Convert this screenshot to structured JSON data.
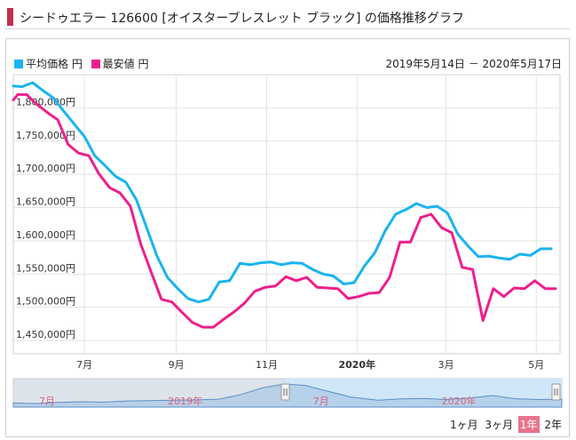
{
  "header": {
    "title": "シードゥエラー 126600 [オイスターブレスレット ブラック] の価格推移グラフ"
  },
  "legend": {
    "items": [
      {
        "label": "平均価格 円",
        "color": "#1ab3f0"
      },
      {
        "label": "最安値 円",
        "color": "#ee1f8c"
      }
    ]
  },
  "date_range": "2019年5月14日 － 2020年5月17日",
  "colors": {
    "average": "#1ab3f0",
    "lowest": "#ee1f8c",
    "grid": "#e3e3e3",
    "navigator_bg": "#dde3ea",
    "navigator_selected": "#cfe7f8",
    "navigator_line": "#5b8fc7",
    "navigator_label": "#e0607a"
  },
  "chart_data": {
    "type": "line",
    "ylim": [
      1430000,
      1850000
    ],
    "y_ticks": [
      {
        "value": 1450000,
        "label": "1,450,000円"
      },
      {
        "value": 1500000,
        "label": "1,500,000円"
      },
      {
        "value": 1550000,
        "label": "1,550,000円"
      },
      {
        "value": 1600000,
        "label": "1,600,000円"
      },
      {
        "value": 1650000,
        "label": "1,650,000円"
      },
      {
        "value": 1700000,
        "label": "1,700,000円"
      },
      {
        "value": 1750000,
        "label": "1,750,000円"
      },
      {
        "value": 1800000,
        "label": "1,800,000円"
      }
    ],
    "x_range": [
      "2019-05-14",
      "2020-05-17"
    ],
    "x_ticks": [
      {
        "date": "2019-07-01",
        "label": "7月",
        "bold": false
      },
      {
        "date": "2019-09-01",
        "label": "9月",
        "bold": false
      },
      {
        "date": "2019-11-01",
        "label": "11月",
        "bold": false
      },
      {
        "date": "2020-01-01",
        "label": "2020年",
        "bold": true
      },
      {
        "date": "2020-03-01",
        "label": "3月",
        "bold": false
      },
      {
        "date": "2020-05-01",
        "label": "5月",
        "bold": false
      }
    ],
    "series": [
      {
        "name": "平均価格 円",
        "color": "#1ab3f0",
        "points": [
          [
            "2019-05-14",
            1833000
          ],
          [
            "2019-05-20",
            1832000
          ],
          [
            "2019-05-27",
            1838000
          ],
          [
            "2019-06-03",
            1826000
          ],
          [
            "2019-06-10",
            1815000
          ],
          [
            "2019-06-17",
            1795000
          ],
          [
            "2019-06-24",
            1776000
          ],
          [
            "2019-07-01",
            1757000
          ],
          [
            "2019-07-08",
            1728000
          ],
          [
            "2019-07-15",
            1713000
          ],
          [
            "2019-07-22",
            1697000
          ],
          [
            "2019-07-29",
            1688000
          ],
          [
            "2019-08-05",
            1662000
          ],
          [
            "2019-08-12",
            1620000
          ],
          [
            "2019-08-19",
            1577000
          ],
          [
            "2019-08-26",
            1545000
          ],
          [
            "2019-09-02",
            1528000
          ],
          [
            "2019-09-09",
            1513000
          ],
          [
            "2019-09-16",
            1508000
          ],
          [
            "2019-09-23",
            1512000
          ],
          [
            "2019-09-30",
            1538000
          ],
          [
            "2019-10-07",
            1540000
          ],
          [
            "2019-10-14",
            1566000
          ],
          [
            "2019-10-21",
            1564000
          ],
          [
            "2019-10-28",
            1567000
          ],
          [
            "2019-11-04",
            1568000
          ],
          [
            "2019-11-11",
            1564000
          ],
          [
            "2019-11-18",
            1567000
          ],
          [
            "2019-11-25",
            1566000
          ],
          [
            "2019-12-02",
            1557000
          ],
          [
            "2019-12-09",
            1550000
          ],
          [
            "2019-12-16",
            1547000
          ],
          [
            "2019-12-23",
            1535000
          ],
          [
            "2019-12-30",
            1537000
          ],
          [
            "2020-01-06",
            1562000
          ],
          [
            "2020-01-13",
            1582000
          ],
          [
            "2020-01-20",
            1615000
          ],
          [
            "2020-01-27",
            1640000
          ],
          [
            "2020-02-03",
            1647000
          ],
          [
            "2020-02-10",
            1656000
          ],
          [
            "2020-02-17",
            1650000
          ],
          [
            "2020-02-24",
            1652000
          ],
          [
            "2020-03-02",
            1642000
          ],
          [
            "2020-03-09",
            1610000
          ],
          [
            "2020-03-16",
            1592000
          ],
          [
            "2020-03-23",
            1576000
          ],
          [
            "2020-03-30",
            1577000
          ],
          [
            "2020-04-06",
            1574000
          ],
          [
            "2020-04-13",
            1572000
          ],
          [
            "2020-04-20",
            1580000
          ],
          [
            "2020-04-27",
            1578000
          ],
          [
            "2020-05-04",
            1588000
          ],
          [
            "2020-05-11",
            1588000
          ]
        ]
      },
      {
        "name": "最安値 円",
        "color": "#ee1f8c",
        "points": [
          [
            "2019-05-14",
            1812000
          ],
          [
            "2019-05-17",
            1820000
          ],
          [
            "2019-05-23",
            1820000
          ],
          [
            "2019-05-30",
            1805000
          ],
          [
            "2019-06-06",
            1793000
          ],
          [
            "2019-06-13",
            1782000
          ],
          [
            "2019-06-20",
            1745000
          ],
          [
            "2019-06-27",
            1732000
          ],
          [
            "2019-07-04",
            1728000
          ],
          [
            "2019-07-11",
            1700000
          ],
          [
            "2019-07-18",
            1680000
          ],
          [
            "2019-07-25",
            1672000
          ],
          [
            "2019-08-01",
            1652000
          ],
          [
            "2019-08-08",
            1595000
          ],
          [
            "2019-08-15",
            1553000
          ],
          [
            "2019-08-22",
            1512000
          ],
          [
            "2019-08-29",
            1508000
          ],
          [
            "2019-09-05",
            1492000
          ],
          [
            "2019-09-12",
            1477000
          ],
          [
            "2019-09-19",
            1470000
          ],
          [
            "2019-09-26",
            1470000
          ],
          [
            "2019-10-03",
            1482000
          ],
          [
            "2019-10-10",
            1493000
          ],
          [
            "2019-10-17",
            1506000
          ],
          [
            "2019-10-24",
            1524000
          ],
          [
            "2019-10-31",
            1530000
          ],
          [
            "2019-11-07",
            1532000
          ],
          [
            "2019-11-14",
            1546000
          ],
          [
            "2019-11-21",
            1540000
          ],
          [
            "2019-11-28",
            1545000
          ],
          [
            "2019-12-05",
            1530000
          ],
          [
            "2019-12-12",
            1529000
          ],
          [
            "2019-12-19",
            1528000
          ],
          [
            "2019-12-26",
            1513000
          ],
          [
            "2020-01-02",
            1516000
          ],
          [
            "2020-01-09",
            1521000
          ],
          [
            "2020-01-16",
            1522000
          ],
          [
            "2020-01-23",
            1545000
          ],
          [
            "2020-01-30",
            1598000
          ],
          [
            "2020-02-06",
            1598000
          ],
          [
            "2020-02-13",
            1635000
          ],
          [
            "2020-02-20",
            1640000
          ],
          [
            "2020-02-27",
            1620000
          ],
          [
            "2020-03-05",
            1612000
          ],
          [
            "2020-03-12",
            1560000
          ],
          [
            "2020-03-19",
            1557000
          ],
          [
            "2020-03-26",
            1480000
          ],
          [
            "2020-04-02",
            1528000
          ],
          [
            "2020-04-09",
            1516000
          ],
          [
            "2020-04-16",
            1529000
          ],
          [
            "2020-04-23",
            1528000
          ],
          [
            "2020-04-30",
            1540000
          ],
          [
            "2020-05-07",
            1528000
          ],
          [
            "2020-05-14",
            1528000
          ]
        ]
      }
    ],
    "navigator": {
      "x_range": [
        "2018-05-17",
        "2020-05-17"
      ],
      "selected_range": [
        "2019-05-14",
        "2020-05-17"
      ],
      "labels": [
        {
          "date": "2018-07-01",
          "label": "7月"
        },
        {
          "date": "2019-01-01",
          "label": "2019年"
        },
        {
          "date": "2019-07-01",
          "label": "7月"
        },
        {
          "date": "2020-01-01",
          "label": "2020年"
        }
      ],
      "profile": [
        [
          "2018-05-17",
          1455000
        ],
        [
          "2018-06-15",
          1452000
        ],
        [
          "2018-07-15",
          1458000
        ],
        [
          "2018-08-15",
          1462000
        ],
        [
          "2018-09-15",
          1460000
        ],
        [
          "2018-10-15",
          1466000
        ],
        [
          "2018-11-15",
          1468000
        ],
        [
          "2018-12-15",
          1470000
        ],
        [
          "2019-01-15",
          1472000
        ],
        [
          "2019-02-15",
          1476000
        ],
        [
          "2019-03-15",
          1500000
        ],
        [
          "2019-04-15",
          1540000
        ],
        [
          "2019-05-14",
          1560000
        ],
        [
          "2019-06-10",
          1552000
        ],
        [
          "2019-07-10",
          1520000
        ],
        [
          "2019-08-10",
          1488000
        ],
        [
          "2019-09-15",
          1470000
        ],
        [
          "2019-10-15",
          1478000
        ],
        [
          "2019-11-15",
          1480000
        ],
        [
          "2019-12-15",
          1474000
        ],
        [
          "2020-01-15",
          1483000
        ],
        [
          "2020-02-15",
          1496000
        ],
        [
          "2020-03-15",
          1479000
        ],
        [
          "2020-04-15",
          1474000
        ],
        [
          "2020-05-17",
          1476000
        ]
      ]
    }
  },
  "range_buttons": [
    {
      "label": "1ヶ月",
      "active": false
    },
    {
      "label": "3ヶ月",
      "active": false
    },
    {
      "label": "1年",
      "active": true
    },
    {
      "label": "2年",
      "active": false
    }
  ]
}
